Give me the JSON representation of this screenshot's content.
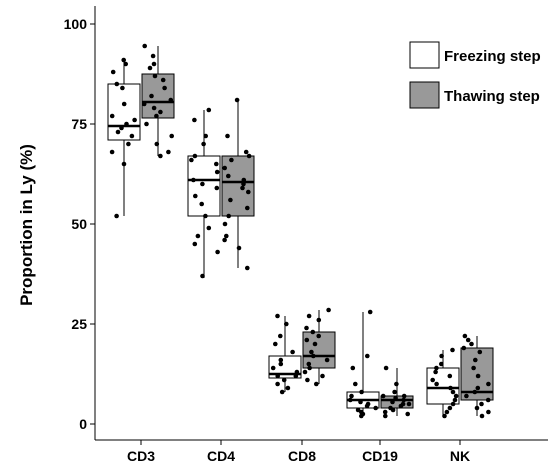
{
  "chart_data": {
    "type": "box",
    "ylabel": "Proportion in Ly (%)",
    "xlabel": "",
    "ylim": [
      0,
      100
    ],
    "yticks": [
      "0",
      "25",
      "50",
      "75",
      "100"
    ],
    "categories": [
      "CD3",
      "CD4",
      "CD8",
      "CD19",
      "NK"
    ],
    "legend_position": "top-right",
    "grid": false,
    "series": [
      {
        "name": "Freezing step",
        "color": "#ffffff",
        "boxes": [
          {
            "min": 52,
            "q1": 71,
            "median": 74.5,
            "q3": 85,
            "max": 91
          },
          {
            "min": 36.5,
            "q1": 52,
            "median": 61,
            "q3": 67,
            "max": 78.5
          },
          {
            "min": 8,
            "q1": 11.5,
            "median": 12.5,
            "q3": 17,
            "max": 27
          },
          {
            "min": 2,
            "q1": 4,
            "median": 6,
            "q3": 8,
            "max": 28
          },
          {
            "min": 2,
            "q1": 5,
            "median": 9,
            "q3": 14,
            "max": 18.5
          }
        ],
        "points": [
          [
            91,
            90,
            88,
            85,
            84,
            80,
            77,
            76,
            75,
            74,
            73,
            72,
            70,
            68,
            65,
            52
          ],
          [
            78.5,
            76,
            72,
            70,
            67,
            66,
            65,
            63,
            61,
            60,
            59,
            57,
            55,
            52,
            49,
            47,
            45,
            43,
            37
          ],
          [
            27,
            25,
            22,
            20,
            18,
            16,
            15,
            14,
            13,
            12,
            12,
            11,
            10,
            9,
            8
          ],
          [
            28,
            17,
            14,
            10,
            8,
            7,
            6,
            5.5,
            5,
            4.5,
            4,
            3.5,
            3,
            2.5,
            2
          ],
          [
            18.5,
            17,
            15,
            14,
            13,
            12,
            11,
            10,
            9,
            8,
            7,
            6,
            5,
            4,
            3,
            2
          ]
        ]
      },
      {
        "name": "Thawing step",
        "color": "#999999",
        "boxes": [
          {
            "min": 67,
            "q1": 76.5,
            "median": 80.5,
            "q3": 87.5,
            "max": 94.5
          },
          {
            "min": 39,
            "q1": 52,
            "median": 60.5,
            "q3": 67,
            "max": 81
          },
          {
            "min": 10,
            "q1": 14,
            "median": 17,
            "q3": 23,
            "max": 28.5
          },
          {
            "min": 2,
            "q1": 4,
            "median": 6,
            "q3": 7,
            "max": 14
          },
          {
            "min": 2,
            "q1": 6,
            "median": 8,
            "q3": 19,
            "max": 22
          }
        ],
        "points": [
          [
            94.5,
            92,
            90,
            89,
            87,
            86,
            84,
            82,
            81,
            80,
            79,
            78,
            77,
            75,
            72,
            70,
            68,
            67
          ],
          [
            81,
            72,
            68,
            67,
            66,
            64,
            62,
            61,
            60,
            59,
            58,
            56,
            54,
            52,
            50,
            47,
            46,
            44,
            39
          ],
          [
            28.5,
            27,
            26,
            24,
            23,
            22,
            21,
            20,
            18,
            17,
            16,
            15,
            14,
            13,
            12,
            11,
            10
          ],
          [
            14,
            10,
            8,
            7,
            7,
            6.5,
            6,
            5.5,
            5,
            5,
            4.5,
            4,
            3.5,
            3,
            2.5,
            2
          ],
          [
            22,
            21,
            20,
            19,
            18,
            16,
            14,
            12,
            10,
            9,
            8,
            7,
            6,
            5,
            4,
            3,
            2
          ]
        ]
      }
    ]
  }
}
